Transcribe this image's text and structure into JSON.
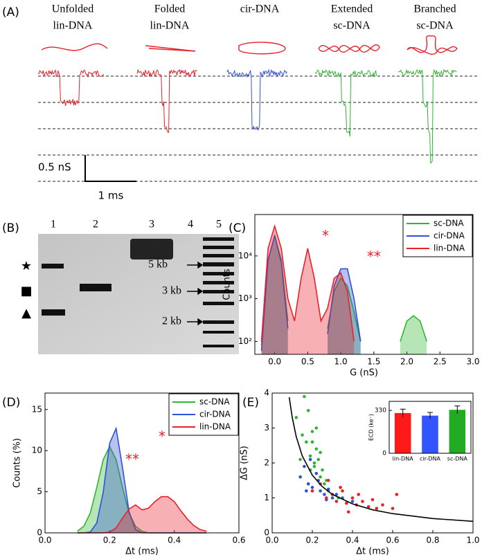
{
  "panel_a": {
    "label": "(A)",
    "titles": [
      [
        "Unfolded",
        "lin-DNA"
      ],
      [
        "Folded",
        "lin-DNA"
      ],
      [
        "cir-DNA"
      ],
      [
        "Extended",
        "sc-DNA"
      ],
      [
        "Branched",
        "sc-DNA"
      ]
    ],
    "scale_y": "0.5 nS",
    "scale_x": "1 ms"
  },
  "panel_b": {
    "label": "(B)",
    "lanes": [
      "1",
      "2",
      "3",
      "4",
      "5"
    ],
    "markers": [
      "5 kb",
      "3 kb",
      "2 kb"
    ],
    "symbols": [
      "★",
      "■",
      "▲"
    ]
  },
  "chart_data": [
    {
      "type": "line",
      "label": "(C)",
      "x_label": "G (nS)",
      "y_label": "Counts",
      "log_y": true,
      "fill": true,
      "legend": "upper right",
      "annotations": [
        "*",
        "**"
      ],
      "xlim": [
        -0.3,
        3.0
      ],
      "xticks": [
        {
          "value": 0,
          "label": "0.0"
        },
        0.5,
        {
          "value": 1,
          "label": "1.0"
        },
        1.5,
        {
          "value": 2,
          "label": "2.0"
        },
        2.5,
        {
          "value": 3,
          "label": "3.0"
        }
      ],
      "ylim": [
        50,
        93000
      ],
      "yticks": [
        {
          "value": 100,
          "label": "10²"
        },
        {
          "value": 1000,
          "label": "10³"
        },
        {
          "value": 10000,
          "label": "10⁴"
        }
      ],
      "x": [
        -0.2,
        -0.1,
        0.0,
        0.1,
        0.2,
        0.3,
        0.4,
        0.5,
        0.6,
        0.7,
        0.8,
        0.9,
        1.0,
        1.1,
        1.2,
        1.3,
        1.4,
        1.5,
        1.6,
        1.7,
        1.8,
        1.9,
        2.0,
        2.1,
        2.2,
        2.3,
        2.4
      ],
      "series": [
        {
          "name": "sc-DNA",
          "color": "#2fb52f",
          "values": [
            80,
            8000,
            30000,
            8000,
            300,
            null,
            null,
            null,
            null,
            null,
            200,
            1500,
            3000,
            2000,
            500,
            100,
            null,
            null,
            null,
            null,
            null,
            100,
            300,
            400,
            300,
            100,
            null
          ]
        },
        {
          "name": "cir-DNA",
          "color": "#3050d8",
          "values": [
            60,
            8000,
            30000,
            7000,
            200,
            null,
            null,
            null,
            null,
            null,
            150,
            2000,
            5000,
            5000,
            1000,
            100,
            null,
            null,
            null,
            null,
            null,
            null,
            null,
            null,
            null,
            null,
            null
          ]
        },
        {
          "name": "lin-DNA",
          "color": "#e8202a",
          "values": [
            100,
            15000,
            50000,
            15000,
            1000,
            300,
            3000,
            15000,
            3000,
            300,
            600,
            3000,
            4000,
            1500,
            100,
            null,
            null,
            null,
            null,
            null,
            null,
            null,
            null,
            null,
            null,
            null,
            null
          ]
        }
      ]
    },
    {
      "type": "line",
      "label": "(D)",
      "x_label": "Δt (ms)",
      "y_label": "Counts (%)",
      "fill": true,
      "legend": "upper right",
      "annotations": [
        "**",
        "*"
      ],
      "xlim": [
        0,
        0.6
      ],
      "xticks": [
        {
          "value": 0,
          "label": "0.0"
        },
        0.2,
        0.4,
        0.6
      ],
      "ylim": [
        0,
        17
      ],
      "yticks": [
        0,
        5,
        10,
        15
      ],
      "x": [
        0.1,
        0.12,
        0.14,
        0.16,
        0.18,
        0.2,
        0.22,
        0.24,
        0.26,
        0.28,
        0.3,
        0.32,
        0.34,
        0.36,
        0.38,
        0.4,
        0.42,
        0.44,
        0.46,
        0.48,
        0.5
      ],
      "series": [
        {
          "name": "sc-DNA",
          "color": "#2fb52f",
          "values": [
            0.2,
            0.8,
            2.4,
            5.5,
            8.9,
            10.5,
            8.9,
            5.5,
            2.4,
            0.8,
            0.2,
            0,
            0,
            0,
            0,
            0,
            0,
            0,
            0,
            0,
            0
          ]
        },
        {
          "name": "cir-DNA",
          "color": "#3050d8",
          "values": [
            0,
            0,
            0.1,
            1.2,
            4.9,
            10.9,
            12.7,
            7.9,
            2.6,
            0.4,
            0,
            0,
            0,
            0,
            0,
            0,
            0,
            0,
            0,
            0,
            0
          ]
        },
        {
          "name": "lin-DNA",
          "color": "#e8202a",
          "values": [
            0,
            0,
            0,
            0,
            0,
            0.1,
            0.6,
            1.8,
            2.9,
            3.4,
            2.8,
            3.0,
            3.8,
            4.4,
            4.4,
            3.8,
            2.7,
            1.7,
            0.9,
            0.4,
            0.2
          ]
        }
      ]
    },
    {
      "type": "scatter",
      "label": "(E)",
      "x_label": "Δt (ms)",
      "y_label": "ΔG (nS)",
      "xlim": [
        0,
        1.0
      ],
      "xticks": [
        {
          "value": 0,
          "label": "0.0"
        },
        0.2,
        0.4,
        0.6,
        0.8,
        {
          "value": 1,
          "label": "1.0"
        }
      ],
      "ylim": [
        0,
        4
      ],
      "yticks": [
        0,
        1,
        2,
        3,
        4
      ],
      "series": [
        {
          "color": "#2fb52f",
          "x": [
            0.12,
            0.15,
            0.17,
            0.18,
            0.19,
            0.2,
            0.21,
            0.22,
            0.23,
            0.24,
            0.25,
            0.26,
            0.28,
            0.3,
            0.16,
            0.2,
            0.22,
            0.27,
            0.14,
            0.19,
            0.24,
            0.33,
            0.18,
            0.21
          ],
          "values": [
            3.3,
            2.8,
            2.6,
            3.5,
            2.2,
            2.9,
            1.9,
            2.4,
            2.1,
            1.6,
            1.8,
            1.4,
            1.2,
            1.1,
            3.9,
            2.6,
            3.0,
            1.5,
            2.1,
            1.8,
            2.3,
            1.0,
            1.4,
            2.0
          ]
        },
        {
          "color": "#3050d8",
          "x": [
            0.14,
            0.16,
            0.18,
            0.2,
            0.22,
            0.24,
            0.26,
            0.28,
            0.3,
            0.32,
            0.35,
            0.19,
            0.23,
            0.27,
            0.4,
            0.17
          ],
          "values": [
            1.6,
            1.9,
            1.4,
            1.3,
            1.7,
            1.2,
            1.1,
            1.25,
            1.0,
            1.1,
            1.0,
            2.1,
            1.5,
            0.95,
            0.9,
            1.2
          ]
        },
        {
          "color": "#e8202a",
          "x": [
            0.2,
            0.24,
            0.27,
            0.3,
            0.32,
            0.35,
            0.37,
            0.4,
            0.42,
            0.45,
            0.48,
            0.5,
            0.55,
            0.6,
            0.34,
            0.38,
            0.43,
            0.28,
            0.52,
            0.62
          ],
          "values": [
            1.2,
            1.4,
            1.0,
            1.1,
            0.9,
            1.2,
            0.85,
            1.0,
            0.8,
            0.9,
            0.75,
            0.95,
            0.8,
            0.7,
            1.3,
            0.6,
            1.1,
            1.5,
            0.7,
            1.1
          ]
        },
        {
          "type": "line",
          "color": "#000000",
          "x": [
            0.085,
            0.1,
            0.12,
            0.15,
            0.2,
            0.25,
            0.3,
            0.4,
            0.5,
            0.6,
            0.8,
            1.0
          ],
          "values": [
            3.88,
            3.3,
            2.75,
            2.2,
            1.65,
            1.32,
            1.1,
            0.83,
            0.66,
            0.55,
            0.41,
            0.33
          ]
        }
      ]
    },
    {
      "type": "bar",
      "y_label": "ECD (ke⁻)",
      "categories": [
        "lin-DNA",
        "cir-DNA",
        "sc-DNA"
      ],
      "values": [
        310,
        290,
        335
      ],
      "errors": [
        30,
        25,
        30
      ],
      "colors": [
        "#ff1a1a",
        "#3355ff",
        "#22aa22"
      ],
      "ylim": [
        0,
        400
      ],
      "yticks": [
        0,
        330
      ]
    }
  ]
}
